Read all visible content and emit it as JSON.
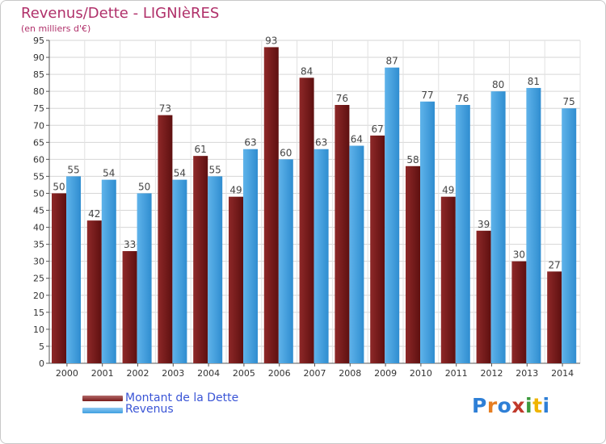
{
  "title": "Revenus/Dette - LIGNIèRES",
  "subtitle": "(en milliers d'€)",
  "colors": {
    "title": "#b0306a",
    "dette": "#7a1a1a",
    "revenus": "#3e9fe0",
    "legend_text": "#3a55d6"
  },
  "legend": {
    "dette_label": "Montant de la Dette",
    "revenus_label": "Revenus"
  },
  "logo": {
    "text": "Proxiti",
    "letters": [
      "P",
      "r",
      "o",
      "x",
      "i",
      "t",
      "i"
    ],
    "colors": [
      "#2e7fd6",
      "#e67e22",
      "#2e7fd6",
      "#c0392b",
      "#3c9a3c",
      "#f0b400",
      "#2e7fd6"
    ]
  },
  "chart_data": {
    "type": "bar",
    "categories": [
      "2000",
      "2001",
      "2002",
      "2003",
      "2004",
      "2005",
      "2006",
      "2007",
      "2008",
      "2009",
      "2010",
      "2011",
      "2012",
      "2013",
      "2014"
    ],
    "series": [
      {
        "name": "Montant de la Dette",
        "values": [
          50,
          42,
          33,
          73,
          61,
          49,
          93,
          84,
          76,
          67,
          58,
          49,
          39,
          30,
          27
        ]
      },
      {
        "name": "Revenus",
        "values": [
          55,
          54,
          50,
          54,
          55,
          63,
          60,
          63,
          64,
          87,
          77,
          76,
          80,
          81,
          75
        ]
      }
    ],
    "ylim": [
      0,
      95
    ],
    "ytick_step": 5,
    "grid": true,
    "legend_position": "bottom-left"
  }
}
